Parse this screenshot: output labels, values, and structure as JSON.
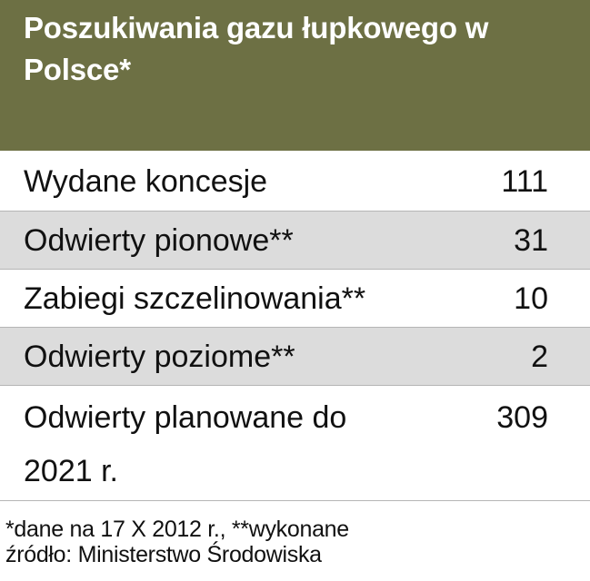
{
  "header": {
    "title": "Poszukiwania gazu łupkowego w Polsce*"
  },
  "colors": {
    "header_background": "#6d7044",
    "header_text": "#ffffff",
    "shaded_row": "#dcdcdc",
    "divider": "#b5b5b5"
  },
  "table": {
    "rows": [
      {
        "label": "Wydane koncesje",
        "value": "111"
      },
      {
        "label": "Odwierty pionowe**",
        "value": "31"
      },
      {
        "label": "Zabiegi szczelinowania**",
        "value": "10"
      },
      {
        "label": "Odwierty poziome**",
        "value": "2"
      },
      {
        "label": "Odwierty planowane do 2021 r.",
        "value": "309"
      }
    ]
  },
  "footnotes": {
    "data_note": "*dane na 17 X 2012 r., **wykonane",
    "source": "źródło: Ministerstwo Środowiska"
  }
}
